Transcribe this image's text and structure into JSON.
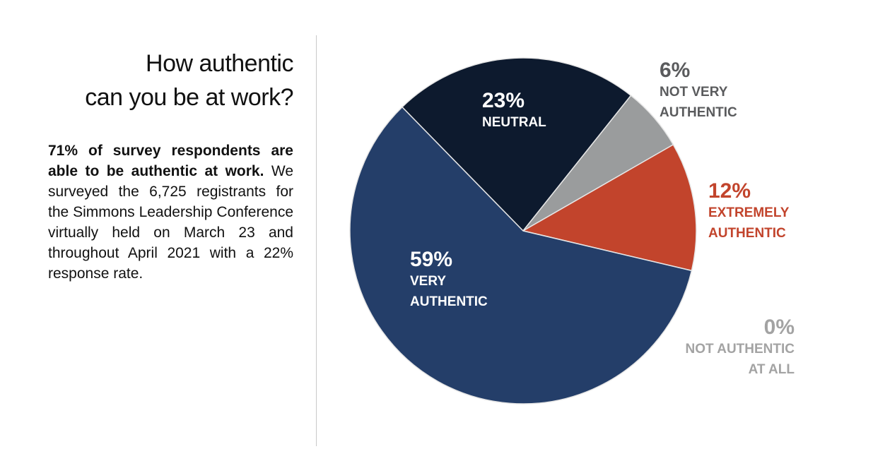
{
  "title": "How authentic can you be at work?",
  "title_lines": [
    "How authentic",
    "can you be at work?"
  ],
  "description": {
    "bold": "71% of survey respondents are able to be authentic at work.",
    "text": "We surveyed the 6,725 registrants for the Simmons Leadership Conference virtually held on March 23 and throughout April 2021 with a 22% response rate."
  },
  "chart_data": {
    "type": "pie",
    "start_angle_deg": -44.3,
    "direction": "clockwise",
    "slices": [
      {
        "label": "NEUTRAL",
        "value": 23,
        "pct_text": "23%",
        "color": "#0d1a2e",
        "label_color": "#ffffff"
      },
      {
        "label": "NOT VERY AUTHENTIC",
        "value": 6,
        "pct_text": "6%",
        "color": "#9a9c9d",
        "label_color": "#5a5b5d"
      },
      {
        "label": "EXTREMELY AUTHENTIC",
        "value": 12,
        "pct_text": "12%",
        "color": "#c2442c",
        "label_color": "#c2442c"
      },
      {
        "label": "NOT AUTHENTIC AT ALL",
        "value": 0,
        "pct_text": "0%",
        "color": "#a3a3a3",
        "label_color": "#a3a3a3"
      },
      {
        "label": "VERY AUTHENTIC",
        "value": 59,
        "pct_text": "59%",
        "color": "#243e69",
        "label_color": "#ffffff"
      }
    ]
  }
}
